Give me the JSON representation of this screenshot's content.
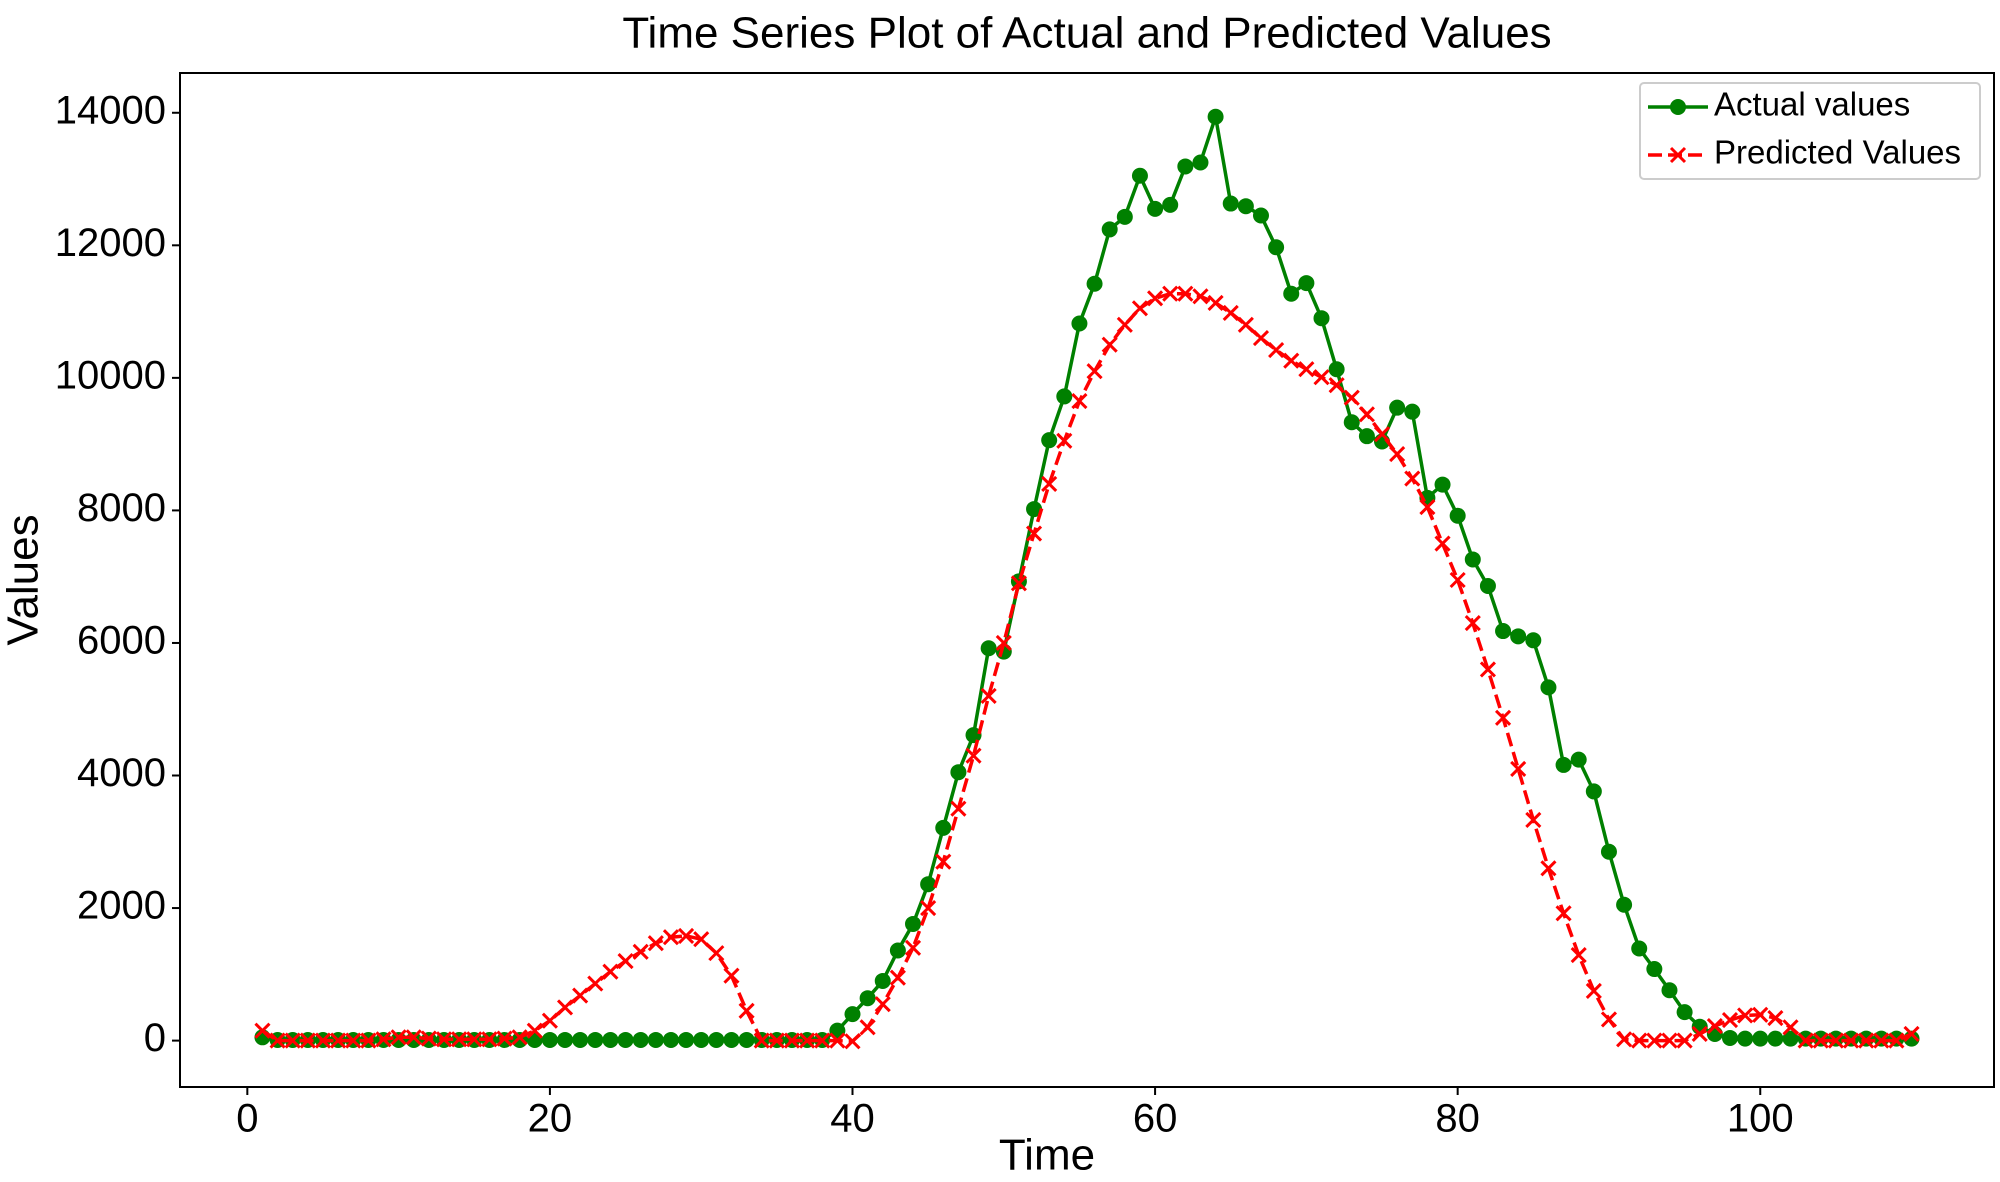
{
  "chart_data": {
    "type": "line",
    "title": "Time Series Plot of Actual and Predicted Values",
    "x_label": "Time",
    "y_label": "Values",
    "x": [
      1,
      2,
      3,
      4,
      5,
      6,
      7,
      8,
      9,
      10,
      11,
      12,
      13,
      14,
      15,
      16,
      17,
      18,
      19,
      20,
      21,
      22,
      23,
      24,
      25,
      26,
      27,
      28,
      29,
      30,
      31,
      32,
      33,
      34,
      35,
      36,
      37,
      38,
      39,
      40,
      41,
      42,
      43,
      44,
      45,
      46,
      47,
      48,
      49,
      50,
      51,
      52,
      53,
      54,
      55,
      56,
      57,
      58,
      59,
      60,
      61,
      62,
      63,
      64,
      65,
      66,
      67,
      68,
      69,
      70,
      71,
      72,
      73,
      74,
      75,
      76,
      77,
      78,
      79,
      80,
      81,
      82,
      83,
      84,
      85,
      86,
      87,
      88,
      89,
      90,
      91,
      92,
      93,
      94,
      95,
      96,
      97,
      98,
      99,
      100,
      101,
      102,
      103,
      104,
      105,
      106,
      107,
      108,
      109,
      110
    ],
    "series": [
      {
        "name": "Actual values",
        "color": "#008000",
        "marker": "circle",
        "linestyle": "solid",
        "values": [
          50,
          10,
          10,
          10,
          10,
          10,
          10,
          10,
          10,
          10,
          10,
          10,
          10,
          10,
          10,
          10,
          10,
          10,
          10,
          10,
          10,
          10,
          10,
          10,
          10,
          10,
          10,
          10,
          10,
          10,
          10,
          10,
          10,
          10,
          10,
          10,
          10,
          10,
          150,
          400,
          640,
          900,
          1360,
          1760,
          2360,
          3210,
          4050,
          4610,
          5920,
          5870,
          6930,
          8020,
          9060,
          9720,
          10820,
          11420,
          12240,
          12430,
          13050,
          12550,
          12610,
          13190,
          13250,
          13940,
          12630,
          12590,
          12450,
          11970,
          11270,
          11430,
          10900,
          10130,
          9330,
          9120,
          9040,
          9550,
          9490,
          8190,
          8390,
          7920,
          7260,
          6860,
          6180,
          6100,
          6040,
          5330,
          4160,
          4240,
          3760,
          2850,
          2050,
          1390,
          1080,
          760,
          430,
          210,
          100,
          40,
          30,
          30,
          30,
          30,
          30,
          30,
          30,
          30,
          30,
          30,
          30,
          30
        ]
      },
      {
        "name": "Predicted Values",
        "color": "#ff0000",
        "marker": "x",
        "linestyle": "dashed",
        "values": [
          150,
          0,
          0,
          0,
          0,
          0,
          0,
          0,
          20,
          50,
          50,
          30,
          20,
          20,
          20,
          20,
          30,
          50,
          150,
          300,
          500,
          680,
          860,
          1040,
          1200,
          1340,
          1470,
          1560,
          1580,
          1530,
          1320,
          980,
          450,
          0,
          0,
          0,
          0,
          0,
          0,
          -10,
          200,
          550,
          950,
          1400,
          2000,
          2700,
          3500,
          4300,
          5200,
          6000,
          6900,
          7650,
          8400,
          9050,
          9650,
          10100,
          10500,
          10800,
          11050,
          11200,
          11270,
          11270,
          11230,
          11130,
          10980,
          10800,
          10600,
          10420,
          10260,
          10130,
          10010,
          9890,
          9700,
          9450,
          9150,
          8850,
          8480,
          8050,
          7500,
          6950,
          6300,
          5600,
          4870,
          4100,
          3330,
          2600,
          1920,
          1290,
          750,
          320,
          20,
          0,
          0,
          0,
          0,
          100,
          220,
          310,
          380,
          390,
          340,
          200,
          0,
          0,
          0,
          0,
          0,
          0,
          0,
          100
        ]
      }
    ],
    "xlim": [
      -4.45,
      115.45
    ],
    "ylim": [
      -700,
      14600
    ],
    "xticks": [
      0,
      20,
      40,
      60,
      80,
      100
    ],
    "yticks": [
      0,
      2000,
      4000,
      6000,
      8000,
      10000,
      12000,
      14000
    ],
    "grid": false,
    "legend": "upper right"
  }
}
